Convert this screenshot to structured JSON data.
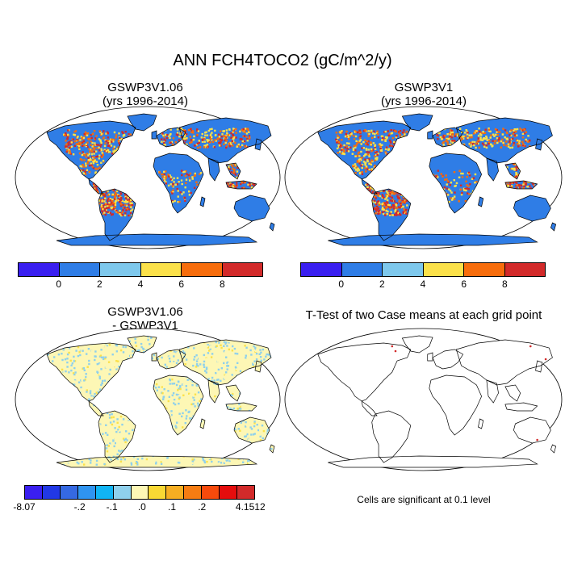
{
  "title": "ANN FCH4TOCO2 (gC/m^2/y)",
  "panels": [
    {
      "title1": "GSWP3V1.06",
      "title2": "(yrs 1996-2014)"
    },
    {
      "title1": "GSWP3V1",
      "title2": "(yrs 1996-2014)"
    },
    {
      "title1": "GSWP3V1.06",
      "title2": "- GSWP3V1"
    },
    {
      "title1": "T-Test of two Case means at each grid point",
      "title2": ""
    }
  ],
  "colorbar_top": {
    "colors": [
      "#3a1ff0",
      "#2f7de6",
      "#7ec8ec",
      "#fbe14a",
      "#f76d0c",
      "#d22a2a"
    ],
    "ticks": [
      "0",
      "2",
      "4",
      "6",
      "8"
    ]
  },
  "colorbar_diff": {
    "colors": [
      "#3a1ff0",
      "#2138e6",
      "#3569e2",
      "#2f94f0",
      "#11b4f4",
      "#8fd0ec",
      "#fdf7b5",
      "#f9d834",
      "#f6ae22",
      "#f67c12",
      "#f74a0c",
      "#e50d0d",
      "#d22a2a"
    ],
    "ticks": [
      "-8.07",
      "-.2",
      "-.1",
      ".0",
      ".1",
      ".2",
      "4.1512"
    ]
  },
  "significance_note": "Cells are significant at 0.1 level",
  "map_colors": {
    "ocean": "#ffffff",
    "land_base": "#2f7de6",
    "hot_low": "#fbe14a",
    "hot_mid": "#f76d0c",
    "hot_high": "#d22a2a",
    "diff_land": "#8fd0ec",
    "diff_pos": "#fdf7b5",
    "coast": "#000000"
  }
}
